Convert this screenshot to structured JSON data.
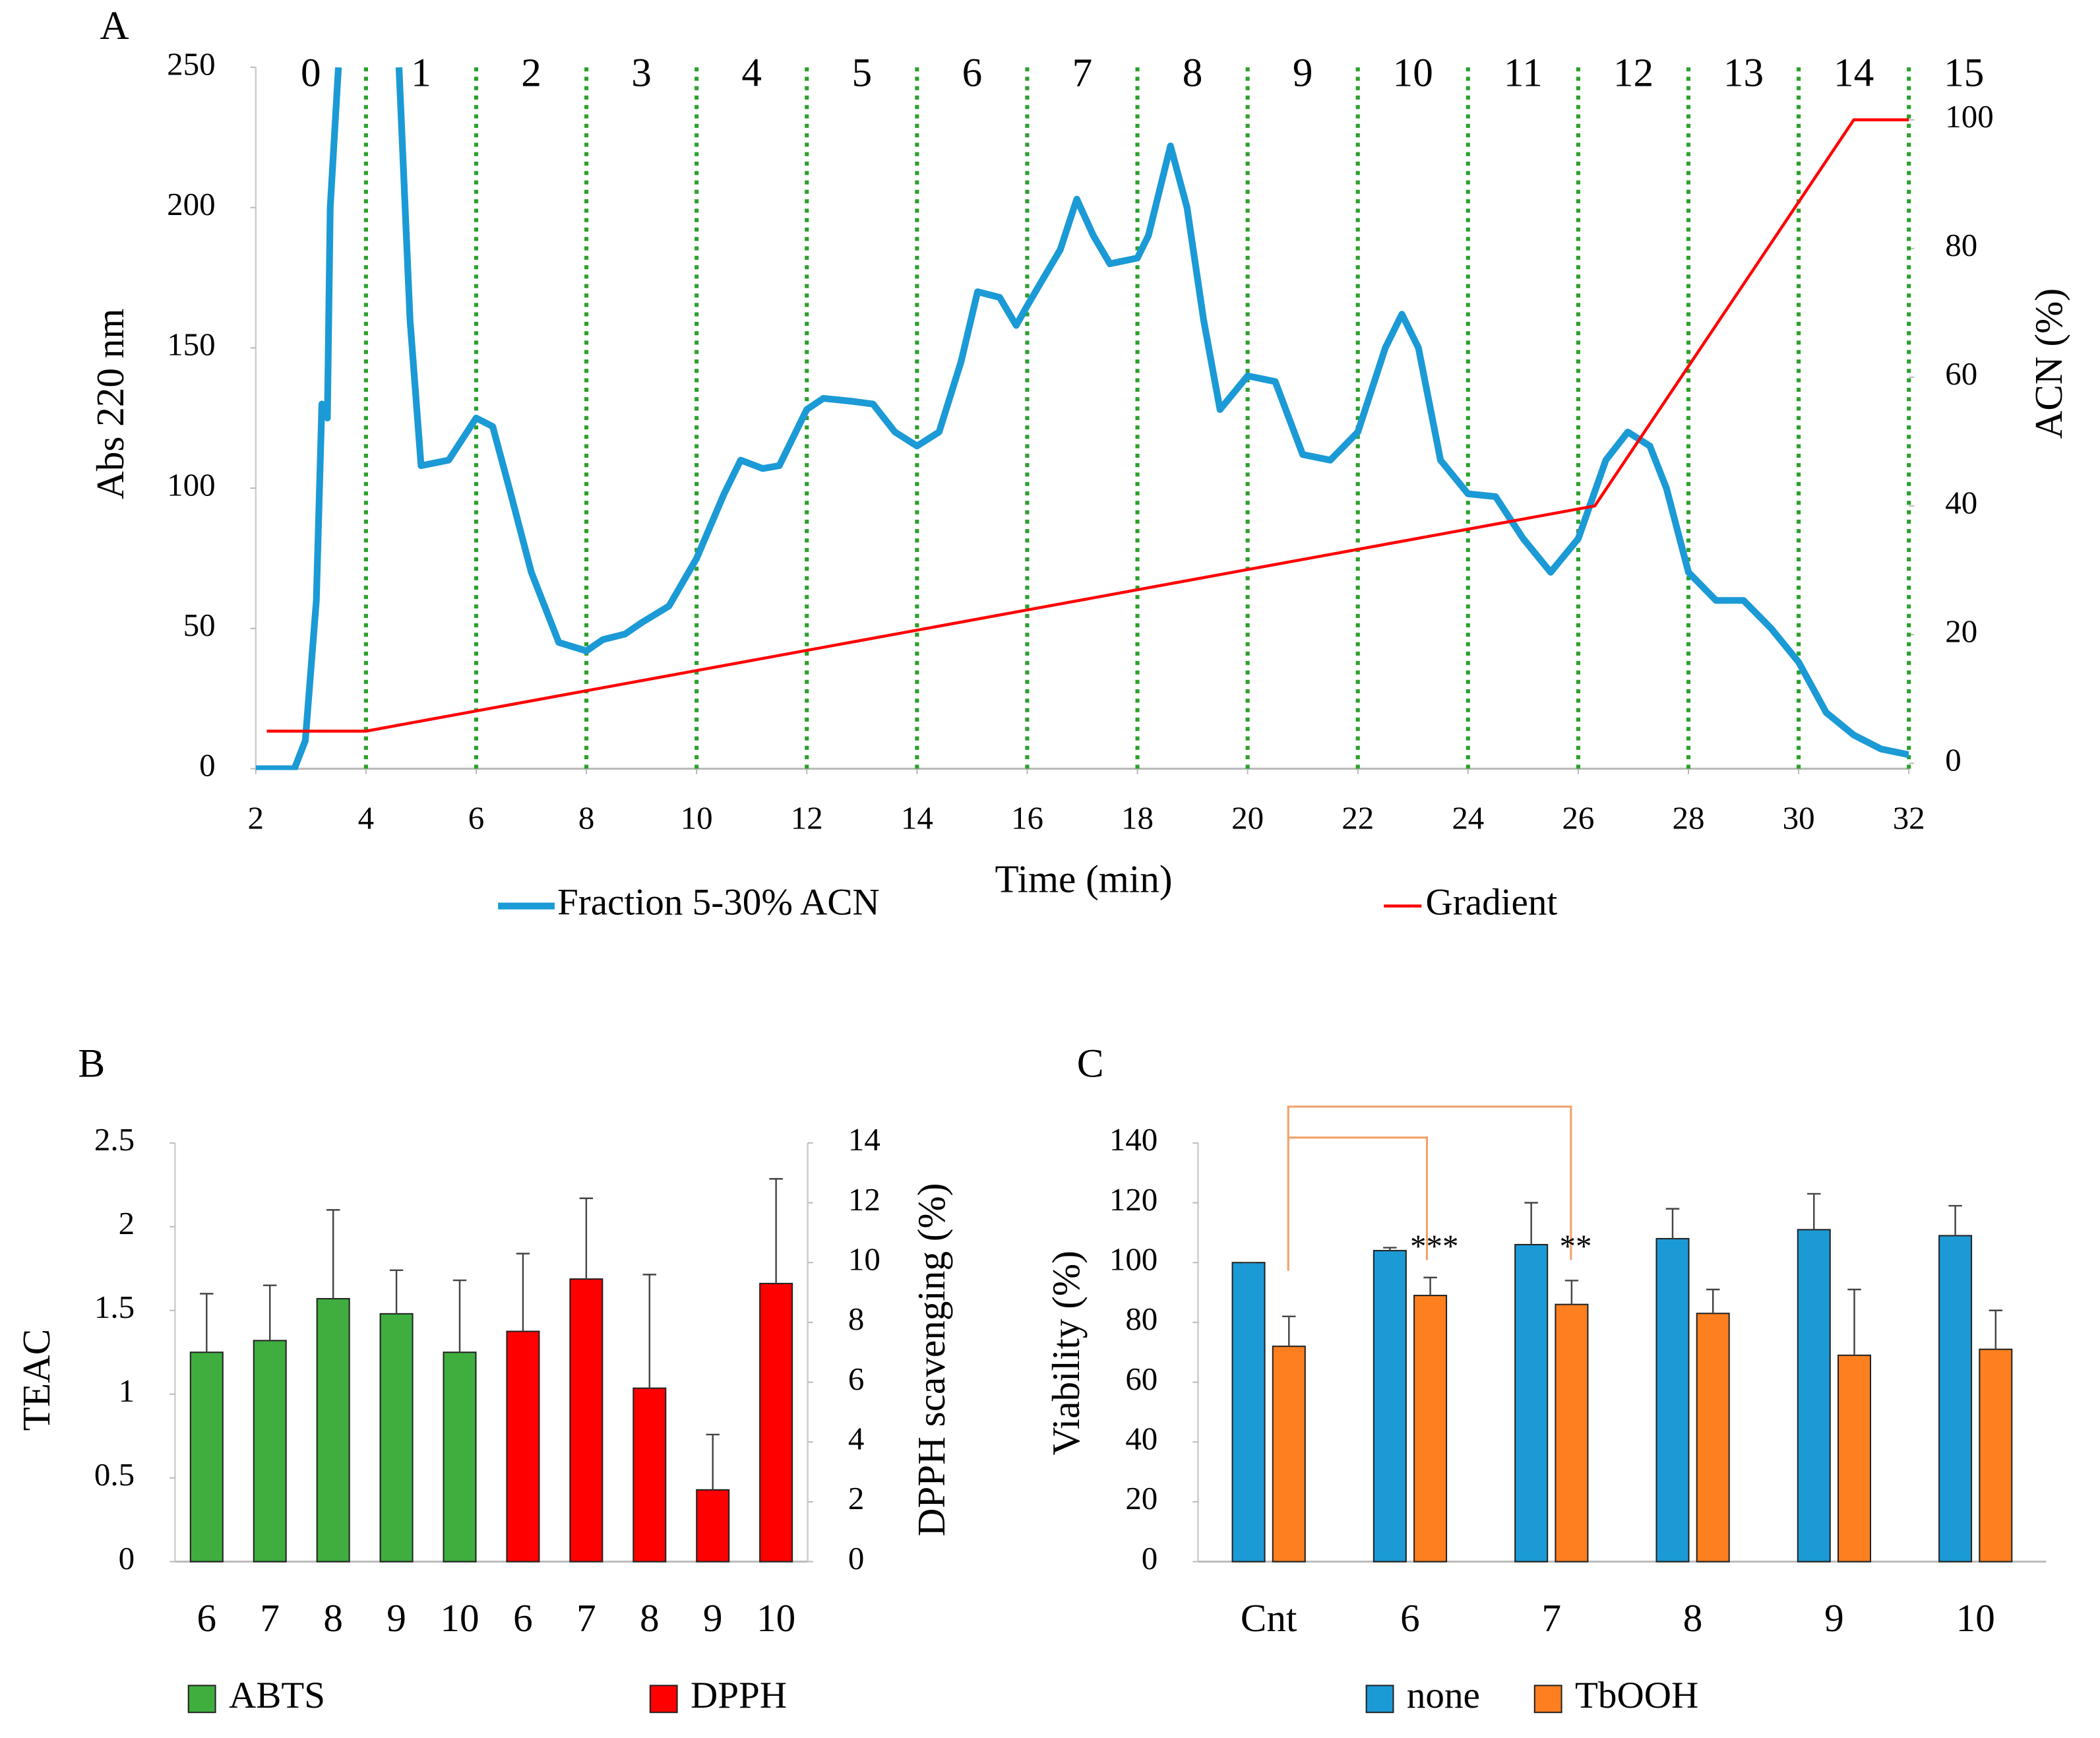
{
  "chart_data": [
    {
      "type": "line",
      "panel": "A",
      "x_label": "Time (min)",
      "y_label": "Abs 220 nm",
      "y2_label": "ACN (%)",
      "xlim": [
        2,
        32
      ],
      "xticks": [
        2,
        4,
        6,
        8,
        10,
        12,
        14,
        16,
        18,
        20,
        22,
        24,
        26,
        28,
        30,
        32
      ],
      "ylim": [
        0,
        250
      ],
      "yticks": [
        0,
        50,
        100,
        150,
        200,
        250
      ],
      "y2lim": [
        0,
        100
      ],
      "y2ticks": [
        0,
        20,
        40,
        60,
        80,
        100
      ],
      "fraction_labels": [
        "0",
        "1",
        "2",
        "3",
        "4",
        "5",
        "6",
        "7",
        "8",
        "9",
        "10",
        "11",
        "12",
        "13",
        "14",
        "15"
      ],
      "fraction_boundaries": [
        4,
        6,
        8,
        10,
        12,
        14,
        16,
        18,
        20,
        22,
        24,
        26,
        28,
        30,
        32
      ],
      "boundary_color": "#2ca02c",
      "series": [
        {
          "name": "Fraction 5-30% ACN",
          "color": "#1b9ad6",
          "x": [
            2,
            2.7,
            2.9,
            3.1,
            3.2,
            3.3,
            3.35,
            3.5,
            4,
            4.6,
            4.8,
            5,
            5.5,
            6,
            6.3,
            6.6,
            7,
            7.5,
            8,
            8.3,
            8.7,
            9,
            9.5,
            10,
            10.5,
            10.8,
            11.2,
            11.5,
            12,
            12.3,
            12.8,
            13.2,
            13.6,
            14,
            14.4,
            14.8,
            15.1,
            15.5,
            15.8,
            16,
            16.3,
            16.6,
            16.9,
            17.2,
            17.5,
            18,
            18.2,
            18.6,
            18.9,
            19.2,
            19.5,
            20,
            20.5,
            21,
            21.5,
            22,
            22.5,
            22.8,
            23.1,
            23.5,
            24,
            24.5,
            25,
            25.5,
            26,
            26.5,
            26.9,
            27.3,
            27.6,
            28,
            28.5,
            29,
            29.5,
            30,
            30.5,
            31,
            31.5,
            32
          ],
          "values": [
            0,
            0,
            10,
            60,
            130,
            125,
            200,
            250,
            null,
            250,
            160,
            108,
            110,
            125,
            122,
            100,
            70,
            45,
            42,
            46,
            48,
            52,
            58,
            75,
            98,
            110,
            107,
            108,
            128,
            132,
            131,
            130,
            120,
            115,
            120,
            145,
            170,
            168,
            158,
            165,
            175,
            185,
            203,
            190,
            180,
            182,
            190,
            222,
            200,
            160,
            128,
            140,
            138,
            112,
            110,
            120,
            150,
            162,
            150,
            110,
            98,
            97,
            82,
            70,
            82,
            110,
            120,
            115,
            100,
            70,
            60,
            60,
            50,
            38,
            20,
            12,
            7,
            5
          ]
        },
        {
          "name": "Gradient",
          "color": "#ff0000",
          "axis": "y2",
          "x": [
            2.2,
            4,
            26.3,
            31,
            32
          ],
          "values": [
            5,
            5,
            40,
            100,
            100
          ]
        }
      ]
    },
    {
      "type": "bar",
      "panel": "B",
      "y_label": "TEAC",
      "y2_label": "DPPH scavenging (%)",
      "ylim": [
        0,
        2.5
      ],
      "yticks": [
        0,
        0.5,
        1,
        1.5,
        2,
        2.5
      ],
      "y2lim": [
        0,
        14
      ],
      "y2ticks": [
        0,
        2,
        4,
        6,
        8,
        10,
        12,
        14
      ],
      "categories": [
        "6",
        "7",
        "8",
        "9",
        "10",
        "6",
        "7",
        "8",
        "9",
        "10"
      ],
      "series": [
        {
          "name": "ABTS",
          "color": "#3fae3f",
          "values": [
            1.25,
            1.32,
            1.57,
            1.48,
            1.25,
            null,
            null,
            null,
            null,
            null
          ],
          "errors": [
            0.35,
            0.33,
            0.53,
            0.26,
            0.43,
            null,
            null,
            null,
            null,
            null
          ]
        },
        {
          "name": "DPPH",
          "color": "#ff0000",
          "axis": "y2",
          "values": [
            null,
            null,
            null,
            null,
            null,
            7.7,
            9.45,
            5.8,
            2.4,
            9.3
          ],
          "errors": [
            null,
            null,
            null,
            null,
            null,
            2.6,
            2.7,
            3.8,
            1.85,
            3.5
          ]
        }
      ]
    },
    {
      "type": "bar",
      "panel": "C",
      "y_label": "Viability (%)",
      "ylim": [
        0,
        140
      ],
      "yticks": [
        0,
        20,
        40,
        60,
        80,
        100,
        120,
        140
      ],
      "categories": [
        "Cnt",
        "6",
        "7",
        "8",
        "9",
        "10"
      ],
      "annotations": [
        "***",
        "**"
      ],
      "series": [
        {
          "name": "none",
          "color": "#1b9ad6",
          "values": [
            100,
            104,
            106,
            108,
            111,
            109
          ],
          "errors": [
            0,
            1,
            14,
            10,
            12,
            10
          ]
        },
        {
          "name": "TbOOH",
          "color": "#fd7f1f",
          "values": [
            72,
            89,
            86,
            83,
            69,
            71
          ],
          "errors": [
            10,
            6,
            8,
            8,
            22,
            13
          ]
        }
      ]
    }
  ]
}
